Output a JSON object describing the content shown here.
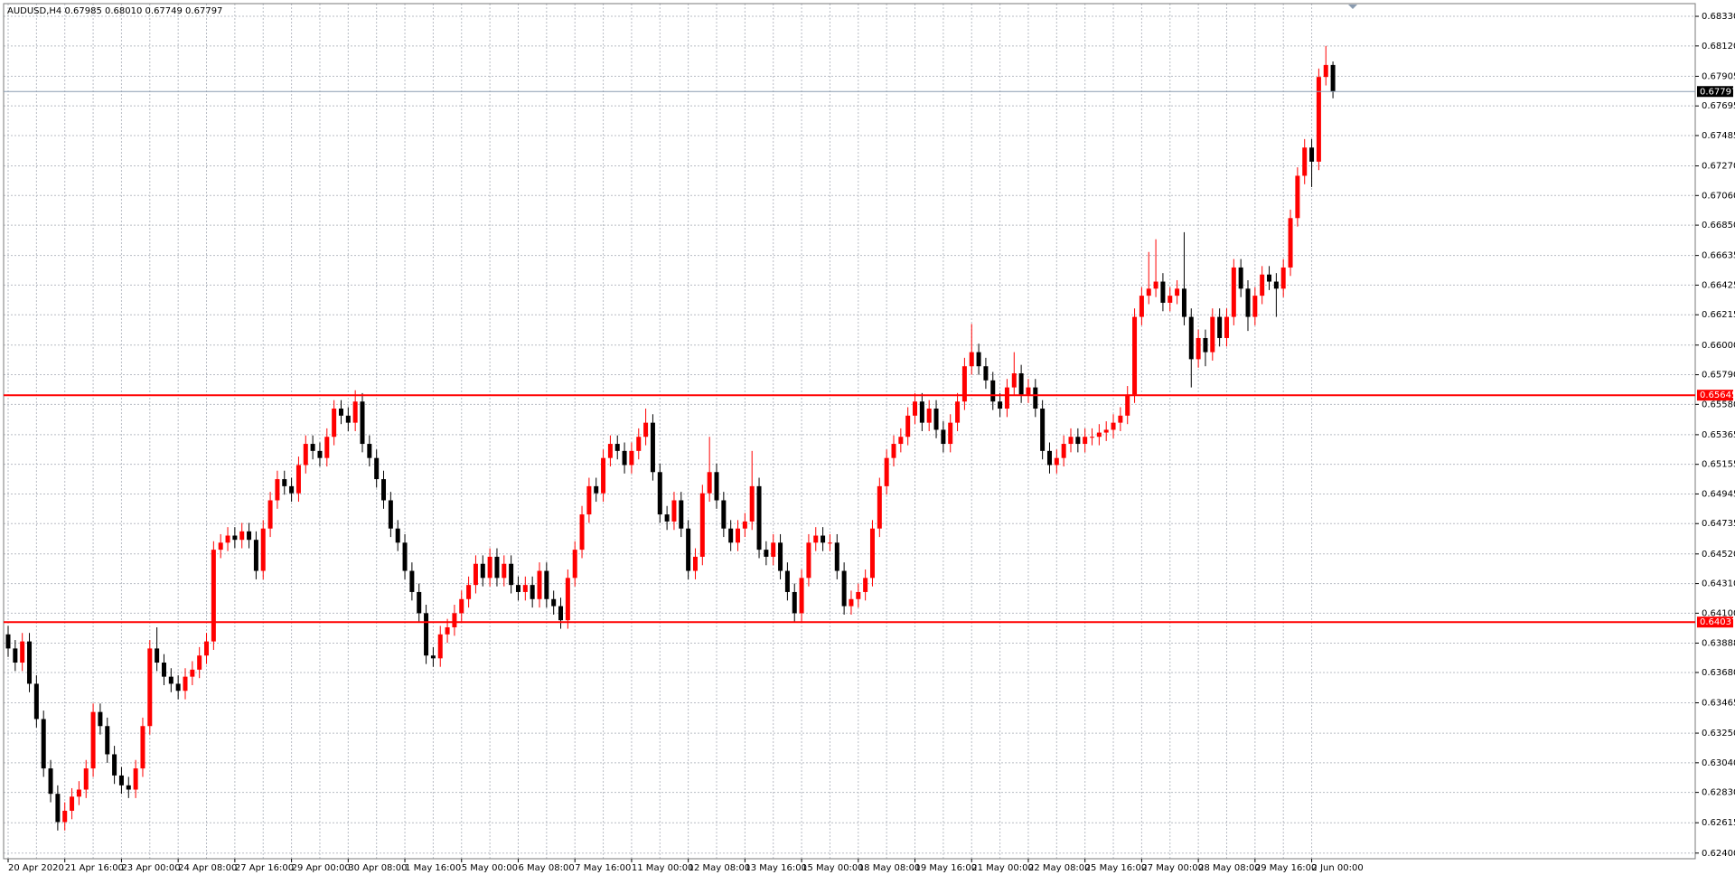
{
  "chart_data": {
    "type": "candlestick",
    "title": "AUDUSD,H4  0.67985 0.68010 0.67749 0.67797",
    "up_color": "#ff0000",
    "down_color": "#000000",
    "grid": true,
    "ylim": [
      0.6236,
      0.6842
    ],
    "yticks": [
      {
        "value": 0.6833,
        "label": "0.68330"
      },
      {
        "value": 0.6812,
        "label": "0.68120"
      },
      0.67905,
      0.67695,
      0.67485,
      {
        "value": 0.6727,
        "label": "0.67270"
      },
      {
        "value": 0.6706,
        "label": "0.67060"
      },
      {
        "value": 0.6685,
        "label": "0.66850"
      },
      0.66635,
      0.66425,
      0.66215,
      {
        "value": 0.66,
        "label": "0.66000"
      },
      {
        "value": 0.6579,
        "label": "0.65790"
      },
      {
        "value": 0.6558,
        "label": "0.65580"
      },
      0.65365,
      0.65155,
      0.64945,
      0.64735,
      {
        "value": 0.6452,
        "label": "0.64520"
      },
      {
        "value": 0.6431,
        "label": "0.64310"
      },
      {
        "value": 0.641,
        "label": "0.64100"
      },
      0.63888,
      {
        "value": 0.6368,
        "label": "0.63680"
      },
      0.63465,
      {
        "value": 0.6325,
        "label": "0.63250"
      },
      {
        "value": 0.6304,
        "label": "0.63040"
      },
      {
        "value": 0.6283,
        "label": "0.62830"
      },
      0.62615,
      {
        "value": 0.624,
        "label": "0.62400"
      }
    ],
    "hlines": [
      {
        "value": 0.67797,
        "color": "#8a9bb0",
        "box": "#000000"
      },
      {
        "value": 0.65645,
        "color": "#ff0000",
        "box": "#ff0000"
      },
      {
        "value": 0.64037,
        "color": "#ff0000",
        "box": "#ff0000"
      }
    ],
    "categories": [
      "20 Apr 2020",
      null,
      null,
      null,
      null,
      null,
      null,
      null,
      "21 Apr 16:00",
      null,
      null,
      null,
      null,
      null,
      null,
      null,
      "23 Apr 00:00",
      null,
      null,
      null,
      null,
      null,
      null,
      null,
      "24 Apr 08:00",
      null,
      null,
      null,
      null,
      null,
      null,
      null,
      "27 Apr 16:00",
      null,
      null,
      null,
      null,
      null,
      null,
      null,
      "29 Apr 00:00",
      null,
      null,
      null,
      null,
      null,
      null,
      null,
      "30 Apr 08:00",
      null,
      null,
      null,
      null,
      null,
      null,
      null,
      "1 May 16:00",
      null,
      null,
      null,
      null,
      null,
      null,
      null,
      "5 May 00:00",
      null,
      null,
      null,
      null,
      null,
      null,
      null,
      "6 May 08:00",
      null,
      null,
      null,
      null,
      null,
      null,
      null,
      "7 May 16:00",
      null,
      null,
      null,
      null,
      null,
      null,
      null,
      "11 May 00:00",
      null,
      null,
      null,
      null,
      null,
      null,
      null,
      "12 May 08:00",
      null,
      null,
      null,
      null,
      null,
      null,
      null,
      "13 May 16:00",
      null,
      null,
      null,
      null,
      null,
      null,
      null,
      "15 May 00:00",
      null,
      null,
      null,
      null,
      null,
      null,
      null,
      "18 May 08:00",
      null,
      null,
      null,
      null,
      null,
      null,
      null,
      "19 May 16:00",
      null,
      null,
      null,
      null,
      null,
      null,
      null,
      "21 May 00:00",
      null,
      null,
      null,
      null,
      null,
      null,
      null,
      "22 May 08:00",
      null,
      null,
      null,
      null,
      null,
      null,
      null,
      "25 May 16:00",
      null,
      null,
      null,
      null,
      null,
      null,
      null,
      "27 May 00:00",
      null,
      null,
      null,
      null,
      null,
      null,
      null,
      "28 May 08:00",
      null,
      null,
      null,
      null,
      null,
      null,
      null,
      "29 May 16:00",
      null,
      null,
      null,
      null,
      null,
      null,
      null,
      "2 Jun 00:00",
      null,
      null,
      null
    ],
    "candles": [
      [
        0.6395,
        0.6401,
        0.6379,
        0.6385
      ],
      [
        0.6385,
        0.6391,
        0.6369,
        0.6375
      ],
      [
        0.6375,
        0.6396,
        0.6369,
        0.639
      ],
      [
        0.639,
        0.6396,
        0.6354,
        0.636
      ],
      [
        0.636,
        0.6366,
        0.6329,
        0.6335
      ],
      [
        0.6335,
        0.6341,
        0.6294,
        0.63
      ],
      [
        0.63,
        0.6306,
        0.6276,
        0.6282
      ],
      [
        0.6282,
        0.6288,
        0.6256,
        0.6262
      ],
      [
        0.6262,
        0.6276,
        0.6256,
        0.627
      ],
      [
        0.627,
        0.6286,
        0.6264,
        0.628
      ],
      [
        0.628,
        0.6291,
        0.6274,
        0.6285
      ],
      [
        0.6285,
        0.6306,
        0.6279,
        0.63
      ],
      [
        0.63,
        0.6346,
        0.6294,
        0.634
      ],
      [
        0.634,
        0.6346,
        0.6324,
        0.633
      ],
      [
        0.633,
        0.6336,
        0.6304,
        0.631
      ],
      [
        0.631,
        0.6316,
        0.6289,
        0.6295
      ],
      [
        0.6295,
        0.6301,
        0.6282,
        0.6288
      ],
      [
        0.6288,
        0.6294,
        0.6279,
        0.6285
      ],
      [
        0.6285,
        0.6306,
        0.6279,
        0.63
      ],
      [
        0.63,
        0.6336,
        0.6294,
        0.633
      ],
      [
        0.633,
        0.6391,
        0.6324,
        0.6385
      ],
      [
        0.6385,
        0.64,
        0.6369,
        0.6375
      ],
      [
        0.6375,
        0.6381,
        0.6359,
        0.6365
      ],
      [
        0.6365,
        0.6371,
        0.6354,
        0.636
      ],
      [
        0.636,
        0.6366,
        0.6349,
        0.6355
      ],
      [
        0.6355,
        0.6371,
        0.6349,
        0.6365
      ],
      [
        0.6365,
        0.6376,
        0.6359,
        0.637
      ],
      [
        0.637,
        0.6386,
        0.6364,
        0.638
      ],
      [
        0.638,
        0.6396,
        0.6374,
        0.639
      ],
      [
        0.639,
        0.6461,
        0.6384,
        0.6455
      ],
      [
        0.6455,
        0.6466,
        0.6449,
        0.646
      ],
      [
        0.646,
        0.6471,
        0.6454,
        0.6465
      ],
      [
        0.6465,
        0.6471,
        0.6456,
        0.6462
      ],
      [
        0.6462,
        0.6474,
        0.6456,
        0.6468
      ],
      [
        0.6468,
        0.6474,
        0.6456,
        0.6462
      ],
      [
        0.6462,
        0.6468,
        0.6434,
        0.644
      ],
      [
        0.644,
        0.6476,
        0.6434,
        0.647
      ],
      [
        0.647,
        0.6496,
        0.6464,
        0.649
      ],
      [
        0.649,
        0.6511,
        0.6484,
        0.6505
      ],
      [
        0.6505,
        0.6511,
        0.6494,
        0.65
      ],
      [
        0.65,
        0.6506,
        0.6489,
        0.6495
      ],
      [
        0.6495,
        0.6521,
        0.6489,
        0.6515
      ],
      [
        0.6515,
        0.6536,
        0.6509,
        0.653
      ],
      [
        0.653,
        0.6536,
        0.6519,
        0.6525
      ],
      [
        0.6525,
        0.6531,
        0.6514,
        0.652
      ],
      [
        0.652,
        0.6541,
        0.6514,
        0.6535
      ],
      [
        0.6535,
        0.6561,
        0.6529,
        0.6555
      ],
      [
        0.6555,
        0.6561,
        0.6544,
        0.655
      ],
      [
        0.655,
        0.6556,
        0.6539,
        0.6545
      ],
      [
        0.6545,
        0.6568,
        0.6539,
        0.656
      ],
      [
        0.656,
        0.6566,
        0.6524,
        0.653
      ],
      [
        0.653,
        0.6536,
        0.6514,
        0.652
      ],
      [
        0.652,
        0.6526,
        0.6499,
        0.6505
      ],
      [
        0.6505,
        0.6511,
        0.6484,
        0.649
      ],
      [
        0.649,
        0.6496,
        0.6464,
        0.647
      ],
      [
        0.647,
        0.6476,
        0.6454,
        0.646
      ],
      [
        0.646,
        0.6466,
        0.6434,
        0.644
      ],
      [
        0.644,
        0.6446,
        0.6419,
        0.6425
      ],
      [
        0.6425,
        0.6431,
        0.6404,
        0.641
      ],
      [
        0.641,
        0.6416,
        0.6374,
        0.638
      ],
      [
        0.638,
        0.6386,
        0.6372,
        0.6378
      ],
      [
        0.6378,
        0.6401,
        0.6372,
        0.6395
      ],
      [
        0.6395,
        0.6406,
        0.6389,
        0.64
      ],
      [
        0.64,
        0.6416,
        0.6394,
        0.641
      ],
      [
        0.641,
        0.6426,
        0.6404,
        0.642
      ],
      [
        0.642,
        0.6436,
        0.6414,
        0.643
      ],
      [
        0.643,
        0.6451,
        0.6424,
        0.6445
      ],
      [
        0.6445,
        0.6451,
        0.6429,
        0.6435
      ],
      [
        0.6435,
        0.6456,
        0.6429,
        0.645
      ],
      [
        0.645,
        0.6456,
        0.6429,
        0.6435
      ],
      [
        0.6435,
        0.6451,
        0.6429,
        0.6445
      ],
      [
        0.6445,
        0.6451,
        0.6424,
        0.643
      ],
      [
        0.643,
        0.6436,
        0.6419,
        0.6425
      ],
      [
        0.6425,
        0.6436,
        0.6419,
        0.643
      ],
      [
        0.643,
        0.6436,
        0.6414,
        0.642
      ],
      [
        0.642,
        0.6446,
        0.6414,
        0.644
      ],
      [
        0.644,
        0.6446,
        0.6414,
        0.642
      ],
      [
        0.642,
        0.6426,
        0.6409,
        0.6415
      ],
      [
        0.6415,
        0.6421,
        0.6399,
        0.6405
      ],
      [
        0.6405,
        0.6441,
        0.6399,
        0.6435
      ],
      [
        0.6435,
        0.6461,
        0.6429,
        0.6455
      ],
      [
        0.6455,
        0.6486,
        0.6449,
        0.648
      ],
      [
        0.648,
        0.6506,
        0.6474,
        0.65
      ],
      [
        0.65,
        0.6506,
        0.6489,
        0.6495
      ],
      [
        0.6495,
        0.6526,
        0.6489,
        0.652
      ],
      [
        0.652,
        0.6536,
        0.6514,
        0.653
      ],
      [
        0.653,
        0.6536,
        0.6519,
        0.6525
      ],
      [
        0.6525,
        0.6531,
        0.6509,
        0.6515
      ],
      [
        0.6515,
        0.6531,
        0.6509,
        0.6525
      ],
      [
        0.6525,
        0.6541,
        0.6519,
        0.6535
      ],
      [
        0.6535,
        0.6555,
        0.6529,
        0.6545
      ],
      [
        0.6545,
        0.6551,
        0.6504,
        0.651
      ],
      [
        0.651,
        0.6516,
        0.6474,
        0.648
      ],
      [
        0.648,
        0.6486,
        0.6469,
        0.6475
      ],
      [
        0.6475,
        0.6496,
        0.6469,
        0.649
      ],
      [
        0.649,
        0.6496,
        0.6464,
        0.647
      ],
      [
        0.647,
        0.6476,
        0.6434,
        0.644
      ],
      [
        0.644,
        0.6456,
        0.6434,
        0.645
      ],
      [
        0.645,
        0.6501,
        0.6444,
        0.6495
      ],
      [
        0.6495,
        0.6535,
        0.6489,
        0.651
      ],
      [
        0.651,
        0.6516,
        0.6484,
        0.649
      ],
      [
        0.649,
        0.6496,
        0.6464,
        0.647
      ],
      [
        0.647,
        0.6476,
        0.6454,
        0.646
      ],
      [
        0.646,
        0.6476,
        0.6454,
        0.647
      ],
      [
        0.647,
        0.6481,
        0.6464,
        0.6475
      ],
      [
        0.6475,
        0.6525,
        0.6469,
        0.65
      ],
      [
        0.65,
        0.6506,
        0.6449,
        0.6455
      ],
      [
        0.6455,
        0.6461,
        0.6444,
        0.645
      ],
      [
        0.645,
        0.6466,
        0.6444,
        0.646
      ],
      [
        0.646,
        0.6466,
        0.6434,
        0.644
      ],
      [
        0.644,
        0.6446,
        0.6419,
        0.6425
      ],
      [
        0.6425,
        0.6431,
        0.6404,
        0.641
      ],
      [
        0.641,
        0.6441,
        0.6404,
        0.6435
      ],
      [
        0.6435,
        0.6466,
        0.6429,
        0.646
      ],
      [
        0.646,
        0.6471,
        0.6454,
        0.6465
      ],
      [
        0.6465,
        0.6471,
        0.6454,
        0.646
      ],
      [
        0.646,
        0.6466,
        0.6454,
        0.646
      ],
      [
        0.646,
        0.6466,
        0.6434,
        0.644
      ],
      [
        0.644,
        0.6446,
        0.6409,
        0.6415
      ],
      [
        0.6415,
        0.6426,
        0.6409,
        0.642
      ],
      [
        0.642,
        0.6431,
        0.6414,
        0.6425
      ],
      [
        0.6425,
        0.6441,
        0.6419,
        0.6435
      ],
      [
        0.6435,
        0.6476,
        0.6429,
        0.647
      ],
      [
        0.647,
        0.6506,
        0.6464,
        0.65
      ],
      [
        0.65,
        0.6526,
        0.6494,
        0.652
      ],
      [
        0.652,
        0.6536,
        0.6514,
        0.653
      ],
      [
        0.653,
        0.6541,
        0.6524,
        0.6535
      ],
      [
        0.6535,
        0.6556,
        0.6529,
        0.655
      ],
      [
        0.655,
        0.6566,
        0.6544,
        0.656
      ],
      [
        0.656,
        0.6566,
        0.6539,
        0.6545
      ],
      [
        0.6545,
        0.6561,
        0.6539,
        0.6555
      ],
      [
        0.6555,
        0.6561,
        0.6534,
        0.654
      ],
      [
        0.654,
        0.6546,
        0.6524,
        0.653
      ],
      [
        0.653,
        0.6551,
        0.6524,
        0.6545
      ],
      [
        0.6545,
        0.6566,
        0.6539,
        0.656
      ],
      [
        0.656,
        0.6591,
        0.6554,
        0.6585
      ],
      [
        0.6585,
        0.6615,
        0.6579,
        0.6595
      ],
      [
        0.6595,
        0.6601,
        0.6579,
        0.6585
      ],
      [
        0.6585,
        0.6591,
        0.6569,
        0.6575
      ],
      [
        0.6575,
        0.6581,
        0.6554,
        0.656
      ],
      [
        0.656,
        0.6566,
        0.6549,
        0.6555
      ],
      [
        0.6555,
        0.6576,
        0.6549,
        0.657
      ],
      [
        0.657,
        0.6595,
        0.6564,
        0.658
      ],
      [
        0.658,
        0.6586,
        0.6559,
        0.6565
      ],
      [
        0.6565,
        0.6576,
        0.6559,
        0.657
      ],
      [
        0.657,
        0.6576,
        0.6549,
        0.6555
      ],
      [
        0.6555,
        0.6561,
        0.6519,
        0.6525
      ],
      [
        0.6525,
        0.6531,
        0.6509,
        0.6515
      ],
      [
        0.6515,
        0.6526,
        0.6509,
        0.652
      ],
      [
        0.652,
        0.6536,
        0.6514,
        0.653
      ],
      [
        0.653,
        0.6541,
        0.6524,
        0.6535
      ],
      [
        0.6535,
        0.6541,
        0.6524,
        0.653
      ],
      [
        0.653,
        0.6541,
        0.6524,
        0.6535
      ],
      [
        0.6535,
        0.6541,
        0.6529,
        0.6535
      ],
      [
        0.6535,
        0.6544,
        0.6529,
        0.6538
      ],
      [
        0.6538,
        0.6546,
        0.6532,
        0.654
      ],
      [
        0.654,
        0.6551,
        0.6534,
        0.6545
      ],
      [
        0.6545,
        0.6556,
        0.6539,
        0.655
      ],
      [
        0.655,
        0.6571,
        0.6544,
        0.6565
      ],
      [
        0.6565,
        0.6626,
        0.6559,
        0.662
      ],
      [
        0.662,
        0.6641,
        0.6614,
        0.6635
      ],
      [
        0.6635,
        0.6666,
        0.6629,
        0.664
      ],
      [
        0.664,
        0.6675,
        0.6634,
        0.6645
      ],
      [
        0.6645,
        0.6651,
        0.6624,
        0.663
      ],
      [
        0.663,
        0.6641,
        0.6624,
        0.6635
      ],
      [
        0.6635,
        0.6646,
        0.6629,
        0.664
      ],
      [
        0.664,
        0.668,
        0.6614,
        0.662
      ],
      [
        0.662,
        0.6626,
        0.657,
        0.659
      ],
      [
        0.659,
        0.6611,
        0.6584,
        0.6605
      ],
      [
        0.6605,
        0.6611,
        0.6585,
        0.6595
      ],
      [
        0.6595,
        0.6626,
        0.6589,
        0.662
      ],
      [
        0.662,
        0.6626,
        0.6599,
        0.6605
      ],
      [
        0.6605,
        0.6626,
        0.6599,
        0.662
      ],
      [
        0.662,
        0.6661,
        0.6614,
        0.6655
      ],
      [
        0.6655,
        0.6661,
        0.6634,
        0.664
      ],
      [
        0.664,
        0.6646,
        0.661,
        0.662
      ],
      [
        0.662,
        0.6641,
        0.6614,
        0.6635
      ],
      [
        0.6635,
        0.6656,
        0.6629,
        0.665
      ],
      [
        0.665,
        0.6656,
        0.6639,
        0.6645
      ],
      [
        0.6645,
        0.6651,
        0.662,
        0.664
      ],
      [
        0.664,
        0.6661,
        0.6634,
        0.6655
      ],
      [
        0.6655,
        0.6696,
        0.6649,
        0.669
      ],
      [
        0.669,
        0.6726,
        0.6684,
        0.672
      ],
      [
        0.672,
        0.6746,
        0.6714,
        0.674
      ],
      [
        0.674,
        0.6746,
        0.6712,
        0.673
      ],
      [
        0.673,
        0.6796,
        0.6724,
        0.679
      ],
      [
        0.679,
        0.6812,
        0.6784,
        0.67985
      ],
      [
        0.67985,
        0.6801,
        0.67749,
        0.67797
      ]
    ]
  }
}
